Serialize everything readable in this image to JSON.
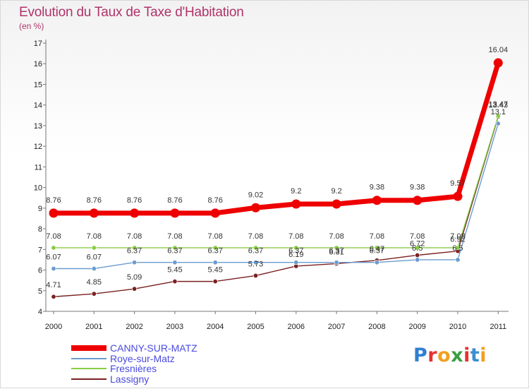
{
  "title": "Evolution du Taux de Taxe d'Habitation",
  "subtitle": "(en %)",
  "logo": {
    "letters": [
      "P",
      "r",
      "o",
      "x",
      "i",
      "t",
      "i"
    ],
    "colors": [
      "#2f7fd0",
      "#e83030",
      "#f0a020",
      "#3aa040",
      "#e83030",
      "#3a8fd0",
      "#f0a020"
    ]
  },
  "chart_data": {
    "type": "line",
    "title": "Evolution du Taux de Taxe d'Habitation",
    "ylabel": "(en %)",
    "x": [
      "2000",
      "2001",
      "2002",
      "2003",
      "2004",
      "2005",
      "2006",
      "2007",
      "2008",
      "2009",
      "2010",
      "2011"
    ],
    "ylim": [
      4,
      17
    ],
    "yticks": [
      "4",
      "5",
      "6",
      "7",
      "8",
      "9",
      "10",
      "11",
      "12",
      "13",
      "14",
      "15",
      "16",
      "17"
    ],
    "grid": false,
    "legend_position": "bottom-left",
    "series": [
      {
        "name": "CANNY-SUR-MATZ",
        "color": "#ee0000",
        "values": [
          8.76,
          8.76,
          8.76,
          8.76,
          8.76,
          9.02,
          9.2,
          9.2,
          9.38,
          9.38,
          9.57,
          16.04
        ],
        "labels": [
          "8.76",
          "8.76",
          "8.76",
          "8.76",
          "8.76",
          "9.02",
          "9.2",
          "9.2",
          "9.38",
          "9.38",
          "9.57",
          "16.04"
        ]
      },
      {
        "name": "Roye-sur-Matz",
        "color": "#6a9ccf",
        "values": [
          6.07,
          6.07,
          6.37,
          6.37,
          6.37,
          6.37,
          6.37,
          6.37,
          6.37,
          6.5,
          6.5,
          13.1
        ],
        "labels": [
          "6.07",
          "6.07",
          "6.37",
          "6.37",
          "6.37",
          "6.37",
          "6.37",
          "6.37",
          "6.37",
          "6.5",
          "6.5",
          "13.1"
        ]
      },
      {
        "name": "Fresnières",
        "color": "#88cc44",
        "values": [
          7.08,
          7.08,
          7.08,
          7.08,
          7.08,
          7.08,
          7.08,
          7.08,
          7.08,
          7.08,
          7.08,
          13.47
        ],
        "labels": [
          "7.08",
          "7.08",
          "7.08",
          "7.08",
          "7.08",
          "7.08",
          "7.08",
          "7.08",
          "7.08",
          "7.08",
          "7.08",
          "13.47"
        ]
      },
      {
        "name": "Lassigny",
        "color": "#7a2020",
        "values": [
          4.71,
          4.85,
          5.09,
          5.45,
          5.45,
          5.73,
          6.19,
          6.31,
          6.47,
          6.72,
          6.92,
          13.43
        ],
        "labels": [
          "4.71",
          "4.85",
          "5.09",
          "5.45",
          "5.45",
          "5.73",
          "6.19",
          "6.31",
          "6.47",
          "6.72",
          "6.92",
          "13.43"
        ]
      }
    ]
  }
}
